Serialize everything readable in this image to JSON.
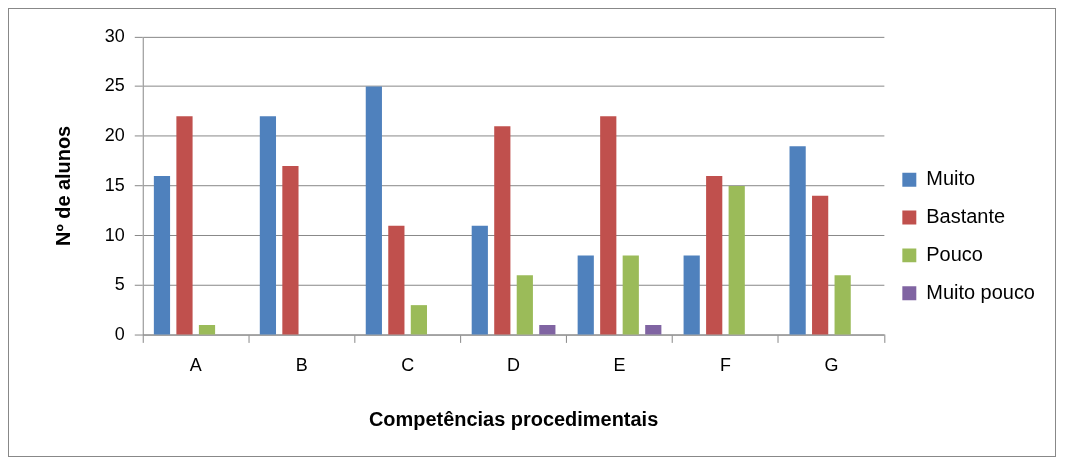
{
  "chart_data": {
    "type": "bar",
    "xlabel": "Competências procedimentais",
    "ylabel": "Nº de alunos",
    "categories": [
      "A",
      "B",
      "C",
      "D",
      "E",
      "F",
      "G"
    ],
    "series": [
      {
        "name": "Muito",
        "color": "#4f81bd",
        "values": [
          16,
          22,
          25,
          11,
          8,
          8,
          19
        ]
      },
      {
        "name": "Bastante",
        "color": "#c0504d",
        "values": [
          22,
          17,
          11,
          21,
          22,
          16,
          14
        ]
      },
      {
        "name": "Pouco",
        "color": "#9bbb59",
        "values": [
          1,
          0,
          3,
          6,
          8,
          15,
          6
        ]
      },
      {
        "name": "Muito pouco",
        "color": "#8064a2",
        "values": [
          0,
          0,
          0,
          1,
          1,
          0,
          0
        ]
      }
    ],
    "ylim": [
      0,
      30
    ],
    "yticks": [
      0,
      5,
      10,
      15,
      20,
      25,
      30
    ],
    "grid": "y",
    "legend": "right"
  }
}
